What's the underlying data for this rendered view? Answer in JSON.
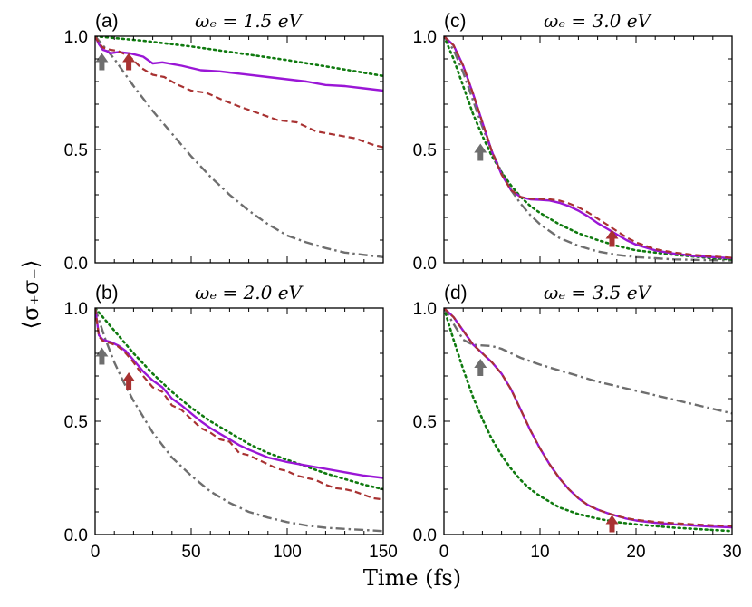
{
  "figure": {
    "ylabel": "⟨σ₊σ₋⟩",
    "xlabel": "Time (fs)"
  },
  "colors": {
    "solid": "#9a16d6",
    "dashed": "#a83232",
    "dotted": "#0f7a0f",
    "dashdot": "#6e6e6e",
    "arrow_gray": "#6e6e6e",
    "arrow_red": "#a83232"
  },
  "chart_data": [
    {
      "type": "line",
      "panel": "(a)",
      "title": "ωₑ = 1.5 eV",
      "xlim": [
        0,
        150
      ],
      "ylim": [
        0,
        1
      ],
      "xticks": [
        0,
        50,
        100,
        150
      ],
      "yticks": [
        0.0,
        0.5,
        1.0
      ],
      "ytick_labels": [
        "0.0",
        "0.5",
        "1.0"
      ],
      "series": [
        {
          "name": "solid",
          "style": "solid",
          "x": [
            0,
            2,
            4,
            6,
            8,
            12,
            18,
            25,
            30,
            35,
            45,
            55,
            65,
            75,
            90,
            100,
            110,
            120,
            130,
            140,
            150
          ],
          "y": [
            1.0,
            0.965,
            0.94,
            0.935,
            0.925,
            0.93,
            0.925,
            0.91,
            0.88,
            0.885,
            0.87,
            0.85,
            0.845,
            0.835,
            0.82,
            0.81,
            0.8,
            0.785,
            0.78,
            0.77,
            0.76
          ]
        },
        {
          "name": "dashed",
          "style": "dashed",
          "x": [
            0,
            2,
            4,
            6,
            8,
            12,
            18,
            24,
            30,
            36,
            42,
            50,
            58,
            66,
            75,
            85,
            95,
            105,
            115,
            125,
            135,
            145,
            150
          ],
          "y": [
            1.0,
            0.97,
            0.95,
            0.945,
            0.94,
            0.935,
            0.91,
            0.86,
            0.83,
            0.82,
            0.79,
            0.76,
            0.75,
            0.72,
            0.69,
            0.66,
            0.63,
            0.62,
            0.58,
            0.565,
            0.55,
            0.52,
            0.51
          ]
        },
        {
          "name": "dotted",
          "style": "dotted",
          "x": [
            0,
            25,
            50,
            75,
            100,
            125,
            150
          ],
          "y": [
            1.0,
            0.98,
            0.955,
            0.925,
            0.895,
            0.86,
            0.825
          ]
        },
        {
          "name": "dashdot",
          "style": "dashdot",
          "x": [
            0,
            5,
            10,
            20,
            30,
            40,
            50,
            60,
            70,
            80,
            90,
            100,
            110,
            120,
            130,
            140,
            150
          ],
          "y": [
            1.0,
            0.95,
            0.9,
            0.78,
            0.67,
            0.57,
            0.47,
            0.38,
            0.3,
            0.23,
            0.17,
            0.12,
            0.09,
            0.065,
            0.045,
            0.035,
            0.025
          ]
        }
      ],
      "arrows": [
        {
          "color": "gray",
          "x": 3.5,
          "y": 0.85
        },
        {
          "color": "red",
          "x": 17.5,
          "y": 0.85
        }
      ]
    },
    {
      "type": "line",
      "panel": "(c)",
      "title": "ωₑ = 3.0 eV",
      "xlim": [
        0,
        30
      ],
      "ylim": [
        0,
        1
      ],
      "xticks": [
        0,
        10,
        20,
        30
      ],
      "yticks": [
        0.0,
        0.5,
        1.0
      ],
      "ytick_labels": [
        "0.0",
        "0.5",
        "1.0"
      ],
      "series": [
        {
          "name": "solid",
          "style": "solid",
          "x": [
            0,
            1,
            2,
            3,
            4,
            5,
            6,
            7,
            8,
            9,
            10,
            11,
            12,
            13,
            14,
            15,
            16,
            17,
            18,
            19,
            20,
            22,
            24,
            26,
            28,
            30
          ],
          "y": [
            1.0,
            0.96,
            0.87,
            0.75,
            0.62,
            0.49,
            0.39,
            0.32,
            0.29,
            0.28,
            0.278,
            0.275,
            0.265,
            0.25,
            0.23,
            0.205,
            0.175,
            0.15,
            0.125,
            0.1,
            0.08,
            0.055,
            0.04,
            0.03,
            0.025,
            0.02
          ]
        },
        {
          "name": "dashed",
          "style": "dashed",
          "x": [
            0,
            1,
            2,
            3,
            4,
            5,
            6,
            7,
            8,
            9,
            10,
            11,
            12,
            13,
            14,
            15,
            16,
            17,
            18,
            19,
            20,
            22,
            24,
            26,
            28,
            30
          ],
          "y": [
            1.0,
            0.96,
            0.87,
            0.75,
            0.62,
            0.49,
            0.39,
            0.32,
            0.29,
            0.283,
            0.282,
            0.28,
            0.275,
            0.262,
            0.245,
            0.222,
            0.195,
            0.168,
            0.14,
            0.112,
            0.09,
            0.06,
            0.045,
            0.035,
            0.028,
            0.022
          ]
        },
        {
          "name": "dotted",
          "style": "dotted",
          "x": [
            0,
            1,
            2,
            3,
            4,
            5,
            6,
            7,
            8,
            9,
            10,
            12,
            14,
            16,
            18,
            20,
            24,
            28,
            30
          ],
          "y": [
            1.0,
            0.9,
            0.78,
            0.66,
            0.56,
            0.47,
            0.4,
            0.34,
            0.29,
            0.25,
            0.22,
            0.17,
            0.13,
            0.1,
            0.075,
            0.055,
            0.035,
            0.02,
            0.015
          ]
        },
        {
          "name": "dashdot",
          "style": "dashdot",
          "x": [
            0,
            1,
            2,
            3,
            4,
            5,
            6,
            7,
            8,
            9,
            10,
            12,
            14,
            16,
            18,
            20,
            22,
            24,
            27,
            30
          ],
          "y": [
            1.0,
            0.94,
            0.84,
            0.72,
            0.6,
            0.49,
            0.4,
            0.32,
            0.26,
            0.21,
            0.17,
            0.11,
            0.075,
            0.05,
            0.035,
            0.025,
            0.02,
            0.015,
            0.012,
            0.01
          ]
        }
      ],
      "arrows": [
        {
          "color": "gray",
          "x": 3.8,
          "y": 0.45
        },
        {
          "color": "red",
          "x": 17.5,
          "y": 0.07
        }
      ]
    },
    {
      "type": "line",
      "panel": "(b)",
      "title": "ωₑ = 2.0 eV",
      "xlim": [
        0,
        150
      ],
      "ylim": [
        0,
        1
      ],
      "xticks": [
        0,
        50,
        100,
        150
      ],
      "xtick_labels": [
        "0",
        "50",
        "100",
        "150"
      ],
      "yticks": [
        0.0,
        0.5,
        1.0
      ],
      "ytick_labels": [
        "0.0",
        "0.5",
        "1.0"
      ],
      "series": [
        {
          "name": "solid",
          "style": "solid",
          "x": [
            0,
            2,
            4,
            6,
            8,
            12,
            16,
            20,
            25,
            30,
            35,
            40,
            45,
            50,
            55,
            60,
            65,
            70,
            75,
            80,
            90,
            100,
            110,
            120,
            130,
            140,
            150
          ],
          "y": [
            1.0,
            0.88,
            0.86,
            0.855,
            0.85,
            0.835,
            0.81,
            0.77,
            0.72,
            0.68,
            0.65,
            0.6,
            0.57,
            0.535,
            0.5,
            0.47,
            0.445,
            0.42,
            0.395,
            0.375,
            0.34,
            0.32,
            0.305,
            0.29,
            0.275,
            0.26,
            0.25
          ]
        },
        {
          "name": "dashed",
          "style": "dashed",
          "x": [
            0,
            2,
            4,
            6,
            8,
            12,
            16,
            20,
            25,
            30,
            35,
            40,
            45,
            50,
            55,
            60,
            65,
            70,
            75,
            80,
            85,
            90,
            95,
            100,
            105,
            110,
            115,
            120,
            125,
            130,
            135,
            140,
            145,
            150
          ],
          "y": [
            1.0,
            0.875,
            0.855,
            0.85,
            0.845,
            0.83,
            0.8,
            0.76,
            0.7,
            0.65,
            0.63,
            0.57,
            0.55,
            0.51,
            0.47,
            0.45,
            0.42,
            0.41,
            0.36,
            0.35,
            0.33,
            0.31,
            0.29,
            0.28,
            0.26,
            0.25,
            0.24,
            0.22,
            0.205,
            0.2,
            0.19,
            0.175,
            0.16,
            0.155
          ]
        },
        {
          "name": "dotted",
          "style": "dotted",
          "x": [
            0,
            10,
            20,
            30,
            40,
            50,
            60,
            70,
            80,
            90,
            100,
            110,
            120,
            130,
            140,
            150
          ],
          "y": [
            1.0,
            0.9,
            0.8,
            0.71,
            0.63,
            0.56,
            0.5,
            0.45,
            0.4,
            0.36,
            0.33,
            0.3,
            0.27,
            0.245,
            0.22,
            0.2
          ]
        },
        {
          "name": "dashdot",
          "style": "dashdot",
          "x": [
            0,
            5,
            10,
            15,
            20,
            30,
            40,
            50,
            60,
            70,
            80,
            90,
            100,
            110,
            120,
            130,
            140,
            150
          ],
          "y": [
            1.0,
            0.87,
            0.76,
            0.67,
            0.59,
            0.45,
            0.34,
            0.26,
            0.19,
            0.14,
            0.1,
            0.075,
            0.055,
            0.04,
            0.03,
            0.025,
            0.02,
            0.015
          ]
        }
      ],
      "arrows": [
        {
          "color": "gray",
          "x": 3.5,
          "y": 0.75
        },
        {
          "color": "red",
          "x": 17.5,
          "y": 0.64
        }
      ]
    },
    {
      "type": "line",
      "panel": "(d)",
      "title": "ωₑ = 3.5 eV",
      "xlim": [
        0,
        30
      ],
      "ylim": [
        0,
        1
      ],
      "xticks": [
        0,
        10,
        20,
        30
      ],
      "xtick_labels": [
        "0",
        "10",
        "20",
        "30"
      ],
      "yticks": [
        0.0,
        0.5,
        1.0
      ],
      "ytick_labels": [
        "0.0",
        "0.5",
        "1.0"
      ],
      "series": [
        {
          "name": "solid",
          "style": "solid",
          "x": [
            0,
            1,
            2,
            3,
            4,
            5,
            6,
            7,
            8,
            9,
            10,
            11,
            12,
            13,
            14,
            15,
            16,
            17,
            18,
            19,
            20,
            22,
            24,
            26,
            28,
            30
          ],
          "y": [
            1.0,
            0.96,
            0.9,
            0.84,
            0.8,
            0.76,
            0.71,
            0.64,
            0.55,
            0.46,
            0.38,
            0.31,
            0.25,
            0.2,
            0.16,
            0.13,
            0.11,
            0.095,
            0.082,
            0.07,
            0.062,
            0.052,
            0.045,
            0.04,
            0.035,
            0.032
          ]
        },
        {
          "name": "dashed",
          "style": "dashed",
          "x": [
            0,
            1,
            2,
            3,
            4,
            5,
            6,
            7,
            8,
            9,
            10,
            11,
            12,
            13,
            14,
            15,
            16,
            17,
            18,
            19,
            20,
            22,
            24,
            26,
            28,
            30
          ],
          "y": [
            1.0,
            0.96,
            0.9,
            0.84,
            0.8,
            0.76,
            0.71,
            0.64,
            0.55,
            0.46,
            0.38,
            0.31,
            0.25,
            0.2,
            0.16,
            0.13,
            0.11,
            0.095,
            0.082,
            0.072,
            0.065,
            0.056,
            0.05,
            0.045,
            0.041,
            0.038
          ]
        },
        {
          "name": "dotted",
          "style": "dotted",
          "x": [
            0,
            1,
            2,
            3,
            4,
            5,
            6,
            7,
            8,
            9,
            10,
            12,
            14,
            16,
            18,
            20,
            24,
            28,
            30
          ],
          "y": [
            1.0,
            0.86,
            0.73,
            0.61,
            0.51,
            0.42,
            0.35,
            0.29,
            0.24,
            0.2,
            0.17,
            0.12,
            0.09,
            0.07,
            0.055,
            0.045,
            0.03,
            0.02,
            0.015
          ]
        },
        {
          "name": "dashdot",
          "style": "dashdot",
          "x": [
            0,
            1,
            2,
            3,
            4,
            5,
            6,
            7,
            8,
            10,
            12,
            14,
            16,
            18,
            20,
            22,
            24,
            26,
            28,
            30
          ],
          "y": [
            1.0,
            0.93,
            0.86,
            0.838,
            0.835,
            0.832,
            0.82,
            0.8,
            0.78,
            0.75,
            0.725,
            0.7,
            0.675,
            0.655,
            0.635,
            0.615,
            0.595,
            0.575,
            0.555,
            0.535
          ]
        }
      ],
      "arrows": [
        {
          "color": "gray",
          "x": 3.8,
          "y": 0.7
        },
        {
          "color": "red",
          "x": 17.5,
          "y": 0.01
        }
      ]
    }
  ]
}
